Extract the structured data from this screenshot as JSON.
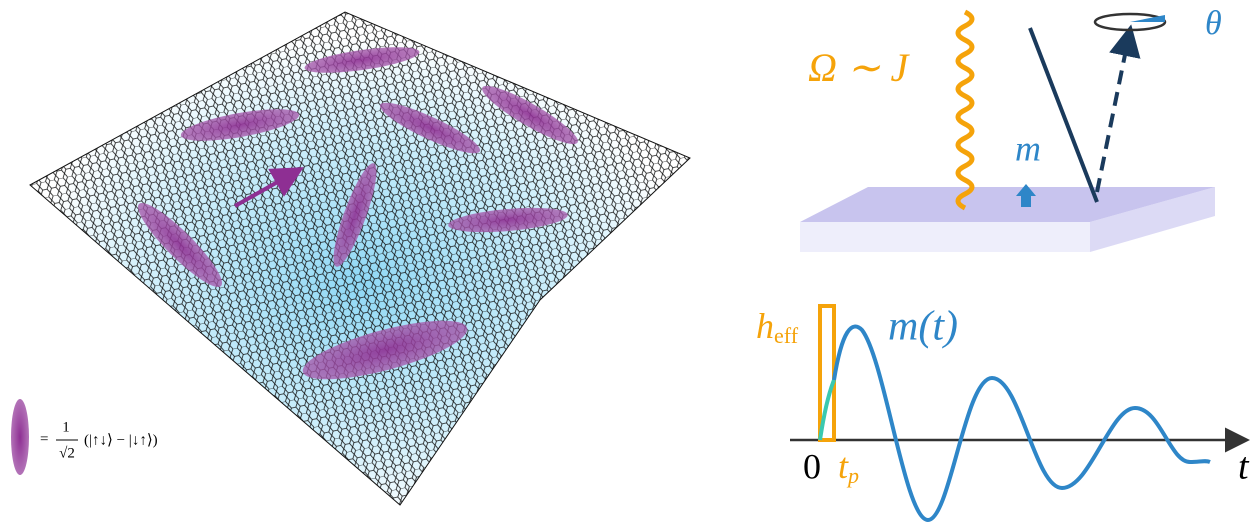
{
  "lattice_figure": {
    "legend": {
      "sign": "=",
      "numerator": "1",
      "denominator": "√2",
      "state": "(|↑↓⟩ − |↓↑⟩)"
    }
  },
  "setup_figure": {
    "drive_label": "Ω ∼ J",
    "angle_label": "θ",
    "magnetization_label": "m"
  },
  "response_figure": {
    "field_label": {
      "base": "h",
      "sub": "eff"
    },
    "curve_label": "m(t)",
    "origin_label": "0",
    "pulse_label": {
      "base": "t",
      "sub": "p"
    },
    "time_label": "t"
  }
}
